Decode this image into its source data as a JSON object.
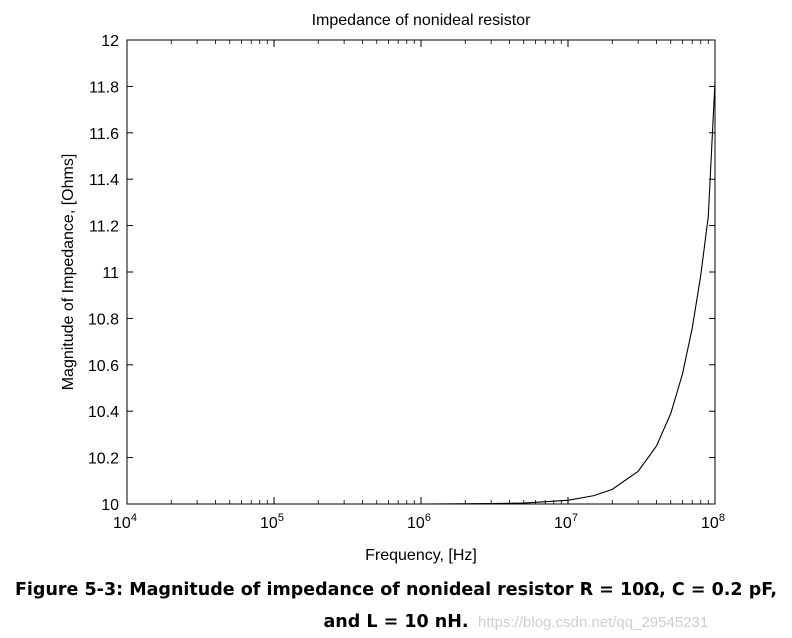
{
  "chart_data": {
    "type": "line",
    "title": "Impedance of nonideal resistor",
    "xlabel": "Frequency, [Hz]",
    "ylabel": "Magnitude of Impedance, [Ohms]",
    "xscale": "log",
    "xlim": [
      10000,
      100000000
    ],
    "ylim": [
      10,
      12
    ],
    "xticks": [
      {
        "base": "10",
        "exp": "4"
      },
      {
        "base": "10",
        "exp": "5"
      },
      {
        "base": "10",
        "exp": "6"
      },
      {
        "base": "10",
        "exp": "7"
      },
      {
        "base": "10",
        "exp": "8"
      }
    ],
    "yticks": [
      "10",
      "10.2",
      "10.4",
      "10.6",
      "10.8",
      "11",
      "11.2",
      "11.4",
      "11.6",
      "11.8",
      "12"
    ],
    "grid": false,
    "legend": "none",
    "series": [
      {
        "x": [
          10000,
          100000,
          1000000,
          3000000,
          5000000,
          10000000,
          15000000,
          20000000,
          30000000,
          40000000,
          50000000,
          60000000,
          70000000,
          80000000,
          90000000,
          100000000
        ],
        "y": [
          10.0,
          10.0,
          10.0,
          10.002,
          10.004,
          10.016,
          10.036,
          10.063,
          10.141,
          10.25,
          10.39,
          10.559,
          10.758,
          10.985,
          11.239,
          11.82
        ]
      }
    ],
    "line_color": "#000000"
  },
  "caption": {
    "line1": "Figure 5-3: Magnitude of impedance of nonideal resistor R = 10Ω, C = 0.2 pF,",
    "line2": "and L = 10 nH."
  },
  "watermark": "https://blog.csdn.net/qq_29545231"
}
